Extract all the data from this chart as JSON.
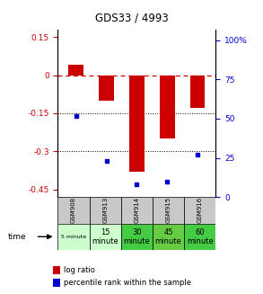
{
  "title": "GDS33 / 4993",
  "samples": [
    "GSM908",
    "GSM913",
    "GSM914",
    "GSM915",
    "GSM916"
  ],
  "time_labels_line1": [
    "5 minute",
    "15",
    "30",
    "45",
    "60"
  ],
  "time_labels_line2": [
    "",
    "minute",
    "minute",
    "minute",
    "minute"
  ],
  "log_ratios": [
    0.04,
    -0.1,
    -0.38,
    -0.25,
    -0.13
  ],
  "percentile_ranks": [
    52,
    23,
    8,
    10,
    27
  ],
  "ylim_left": [
    -0.48,
    0.18
  ],
  "ylim_right": [
    0,
    107
  ],
  "yticks_left": [
    0.15,
    0.0,
    -0.15,
    -0.3,
    -0.45
  ],
  "yticks_left_labels": [
    "0.15",
    "0",
    "-0.15",
    "-0.3",
    "-0.45"
  ],
  "yticks_right": [
    100,
    75,
    50,
    25,
    0
  ],
  "yticks_right_labels": [
    "100%",
    "75",
    "50",
    "25",
    "0"
  ],
  "bar_color": "#cc0000",
  "dot_color": "#0000cc",
  "background_color": "#ffffff",
  "gsm_row_color": "#c8c8c8",
  "time_row_colors": [
    "#ccffcc",
    "#ccffcc",
    "#44cc44",
    "#66cc44",
    "#44cc44"
  ],
  "left_ytick_color": "#cc0000",
  "right_ytick_color": "#0000cc",
  "title_color": "#000000",
  "legend_log_ratio": "log ratio",
  "legend_percentile": "percentile rank within the sample",
  "figsize": [
    2.93,
    3.27
  ],
  "dpi": 100
}
